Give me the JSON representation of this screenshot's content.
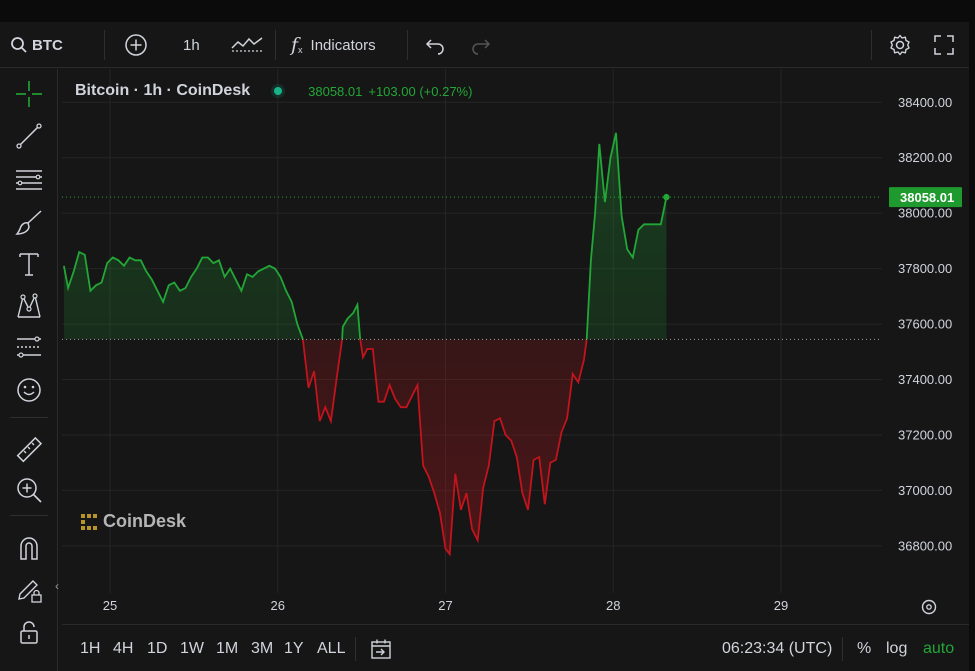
{
  "toolbar": {
    "symbol": "BTC",
    "interval": "1h",
    "indicators_label": "Indicators"
  },
  "left_tools": [
    "crosshair-icon",
    "trend-line-icon",
    "fib-lines-icon",
    "brush-icon",
    "text-icon",
    "pattern-icon",
    "forecast-icon",
    "emoji-icon",
    "ruler-icon",
    "zoom-in-icon",
    "magnet-icon",
    "pencil-lock-icon",
    "lock-icon"
  ],
  "legend": {
    "title": "Bitcoin · 1h · CoinDesk",
    "price": "38058.01",
    "change": "+103.00 (+0.27%)"
  },
  "watermark": "CoinDesk",
  "colors": {
    "up": "#22a737",
    "down": "#c2141c",
    "background": "#161616",
    "grid": "#252525",
    "price_badge": "#1f9a2e"
  },
  "chart_data": {
    "type": "area",
    "baseline": 37545,
    "last_price": 38058.01,
    "last_price_label": "38058.01",
    "x_ticks": [
      {
        "label": "25",
        "t": 0
      },
      {
        "label": "26",
        "t": 24
      },
      {
        "label": "27",
        "t": 48
      },
      {
        "label": "28",
        "t": 72
      },
      {
        "label": "29",
        "t": 96
      }
    ],
    "y_ticks": [
      "38400.00",
      "38200.00",
      "38000.00",
      "37800.00",
      "37600.00",
      "37400.00",
      "37200.00",
      "37000.00",
      "36800.00"
    ],
    "ylim": [
      36630,
      38520
    ],
    "points": [
      [
        -6.6,
        37810
      ],
      [
        -6.0,
        37730
      ],
      [
        -5.2,
        37790
      ],
      [
        -4.4,
        37860
      ],
      [
        -3.6,
        37850
      ],
      [
        -2.8,
        37720
      ],
      [
        -2.0,
        37740
      ],
      [
        -1.2,
        37750
      ],
      [
        -0.4,
        37820
      ],
      [
        0.4,
        37840
      ],
      [
        1.2,
        37830
      ],
      [
        2.0,
        37810
      ],
      [
        2.8,
        37840
      ],
      [
        3.6,
        37830
      ],
      [
        4.4,
        37830
      ],
      [
        5.2,
        37790
      ],
      [
        6.0,
        37760
      ],
      [
        6.8,
        37720
      ],
      [
        7.6,
        37680
      ],
      [
        8.4,
        37740
      ],
      [
        9.2,
        37750
      ],
      [
        10.0,
        37720
      ],
      [
        10.8,
        37730
      ],
      [
        11.6,
        37770
      ],
      [
        12.4,
        37800
      ],
      [
        13.2,
        37840
      ],
      [
        14.0,
        37840
      ],
      [
        14.8,
        37820
      ],
      [
        15.6,
        37830
      ],
      [
        16.4,
        37770
      ],
      [
        17.2,
        37800
      ],
      [
        18.0,
        37760
      ],
      [
        18.8,
        37720
      ],
      [
        19.6,
        37780
      ],
      [
        20.4,
        37770
      ],
      [
        21.2,
        37790
      ],
      [
        22.0,
        37800
      ],
      [
        22.8,
        37810
      ],
      [
        23.6,
        37800
      ],
      [
        24.4,
        37770
      ],
      [
        25.2,
        37720
      ],
      [
        26.0,
        37680
      ],
      [
        26.8,
        37600
      ],
      [
        27.6,
        37545
      ],
      [
        28.4,
        37370
      ],
      [
        29.2,
        37430
      ],
      [
        30.0,
        37250
      ],
      [
        30.8,
        37300
      ],
      [
        31.6,
        37250
      ],
      [
        32.4,
        37400
      ],
      [
        33.2,
        37545
      ],
      [
        33.3,
        37590
      ],
      [
        34.0,
        37620
      ],
      [
        34.8,
        37640
      ],
      [
        35.4,
        37670
      ],
      [
        35.8,
        37545
      ],
      [
        36.2,
        37480
      ],
      [
        36.8,
        37510
      ],
      [
        37.6,
        37510
      ],
      [
        38.4,
        37320
      ],
      [
        39.2,
        37320
      ],
      [
        40.0,
        37380
      ],
      [
        40.8,
        37330
      ],
      [
        41.6,
        37300
      ],
      [
        42.4,
        37300
      ],
      [
        43.2,
        37340
      ],
      [
        44.0,
        37380
      ],
      [
        44.8,
        37090
      ],
      [
        45.6,
        37050
      ],
      [
        46.4,
        36990
      ],
      [
        47.2,
        36920
      ],
      [
        48.0,
        36790
      ],
      [
        48.6,
        36770
      ],
      [
        49.4,
        37060
      ],
      [
        50.2,
        36930
      ],
      [
        51.0,
        36990
      ],
      [
        51.8,
        36860
      ],
      [
        52.6,
        36820
      ],
      [
        53.4,
        37010
      ],
      [
        54.2,
        37090
      ],
      [
        55.0,
        37250
      ],
      [
        55.8,
        37260
      ],
      [
        56.6,
        37200
      ],
      [
        57.4,
        37180
      ],
      [
        58.2,
        37120
      ],
      [
        59.0,
        36990
      ],
      [
        59.8,
        36930
      ],
      [
        60.6,
        37110
      ],
      [
        61.4,
        37120
      ],
      [
        62.2,
        36950
      ],
      [
        63.0,
        37100
      ],
      [
        63.8,
        37110
      ],
      [
        64.6,
        37210
      ],
      [
        65.4,
        37260
      ],
      [
        66.2,
        37420
      ],
      [
        67.0,
        37390
      ],
      [
        67.8,
        37470
      ],
      [
        68.2,
        37545
      ],
      [
        68.8,
        37830
      ],
      [
        69.4,
        38000
      ],
      [
        70.0,
        38250
      ],
      [
        70.8,
        38040
      ],
      [
        71.6,
        38200
      ],
      [
        72.4,
        38290
      ],
      [
        73.2,
        37990
      ],
      [
        74.0,
        37870
      ],
      [
        74.8,
        37840
      ],
      [
        75.6,
        37940
      ],
      [
        76.4,
        37960
      ],
      [
        77.2,
        37960
      ],
      [
        78.0,
        37960
      ],
      [
        78.8,
        37960
      ],
      [
        79.6,
        38058
      ]
    ]
  },
  "bottom": {
    "ranges": [
      "1H",
      "4H",
      "1D",
      "1W",
      "1M",
      "3M",
      "1Y",
      "ALL"
    ],
    "time": "06:23:34 (UTC)",
    "percent": "%",
    "log": "log",
    "auto": "auto"
  }
}
